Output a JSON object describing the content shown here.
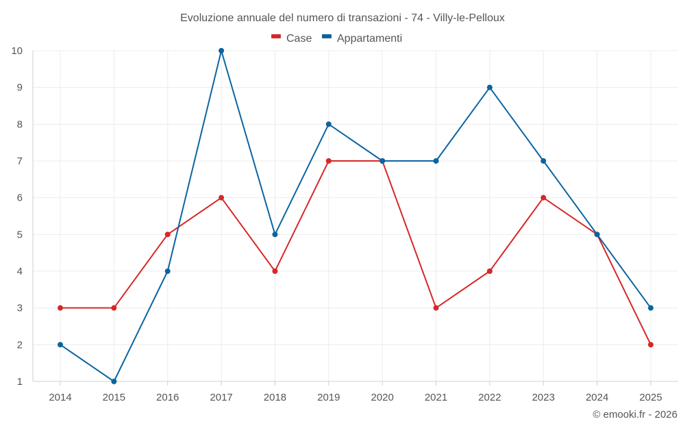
{
  "chart_data": {
    "type": "line",
    "title": "Evoluzione annuale del numero di transazioni - 74 - Villy-le-Pelloux",
    "x": [
      "2014",
      "2015",
      "2016",
      "2017",
      "2018",
      "2019",
      "2020",
      "2021",
      "2022",
      "2023",
      "2024",
      "2025"
    ],
    "series": [
      {
        "name": "Case",
        "color": "#d62728",
        "values": [
          3,
          3,
          5,
          6,
          4,
          7,
          7,
          3,
          4,
          6,
          5,
          2
        ]
      },
      {
        "name": "Appartamenti",
        "color": "#0b64a0",
        "values": [
          2,
          1,
          4,
          10,
          5,
          8,
          7,
          7,
          9,
          7,
          5,
          3
        ]
      }
    ],
    "ylim": [
      1,
      10
    ],
    "yticks": [
      1,
      2,
      3,
      4,
      5,
      6,
      7,
      8,
      9,
      10
    ],
    "grid": true,
    "legend_position": "top-center"
  },
  "credit": "© emooki.fr - 2026"
}
